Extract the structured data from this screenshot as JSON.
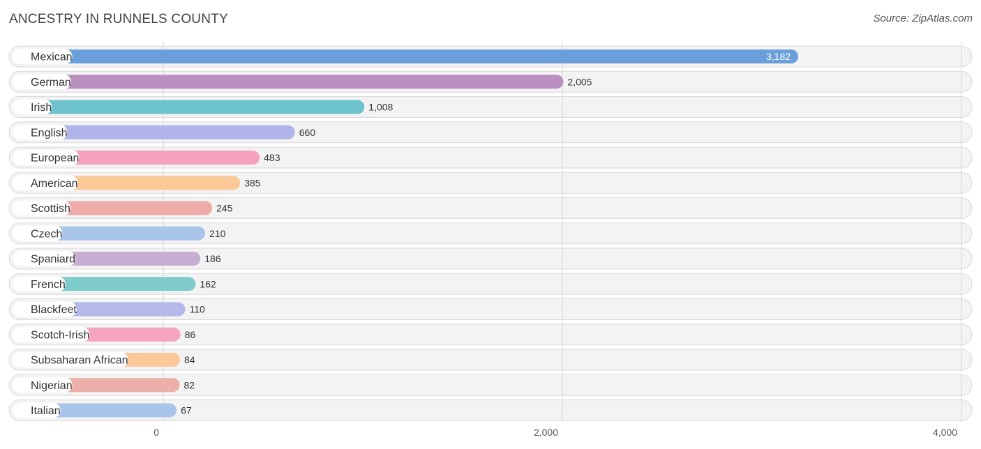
{
  "header": {
    "title": "ANCESTRY IN RUNNELS COUNTY",
    "source": "Source: ZipAtlas.com"
  },
  "chart_data": {
    "type": "bar",
    "orientation": "horizontal",
    "title": "ANCESTRY IN RUNNELS COUNTY",
    "xlabel": "",
    "ylabel": "",
    "xlim": [
      0,
      4000
    ],
    "x_ticks": [
      0,
      2000,
      4000
    ],
    "x_tick_labels": [
      "0",
      "2,000",
      "4,000"
    ],
    "grid": true,
    "categories": [
      "Mexican",
      "German",
      "Irish",
      "English",
      "European",
      "American",
      "Scottish",
      "Czech",
      "Spaniard",
      "French",
      "Blackfeet",
      "Scotch-Irish",
      "Subsaharan African",
      "Nigerian",
      "Italian"
    ],
    "values": [
      3182,
      2005,
      1008,
      660,
      483,
      385,
      245,
      210,
      186,
      162,
      110,
      86,
      84,
      82,
      67
    ],
    "value_labels": [
      "3,182",
      "2,005",
      "1,008",
      "660",
      "483",
      "385",
      "245",
      "210",
      "186",
      "162",
      "110",
      "86",
      "84",
      "82",
      "67"
    ],
    "colors": [
      "#6a9fdc",
      "#ba90c0",
      "#6cc3cd",
      "#b0b4e8",
      "#f6a0bc",
      "#fbc897",
      "#eeaba7",
      "#a9c6ea",
      "#c8aed2",
      "#7ecbcc",
      "#b5b9ea",
      "#f6a5c1",
      "#fbc89a",
      "#eeaeaa",
      "#a9c6ea"
    ]
  }
}
